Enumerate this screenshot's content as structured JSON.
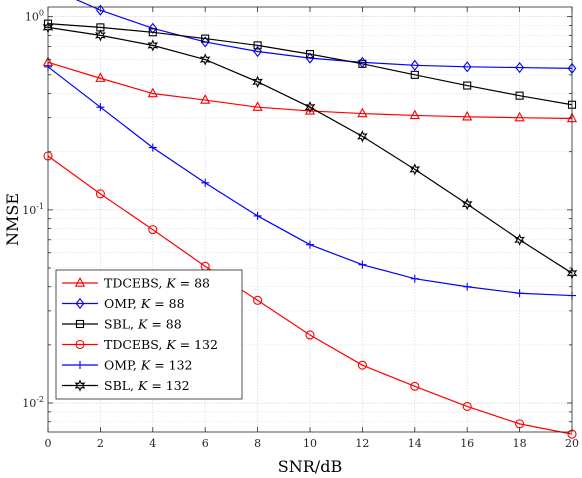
{
  "chart_data": {
    "type": "line",
    "xlabel": "SNR/dB",
    "ylabel": "NMSE",
    "xlim": [
      0,
      20
    ],
    "ylim_exp": [
      -2.15,
      0.05
    ],
    "yscale": "log",
    "grid": true,
    "legend_position": "bottom-left",
    "x": [
      0,
      2,
      4,
      6,
      8,
      10,
      12,
      14,
      16,
      18,
      20
    ],
    "x_ticks": [
      "0",
      "2",
      "4",
      "6",
      "8",
      "10",
      "12",
      "14",
      "16",
      "18",
      "20"
    ],
    "y_ticks": [
      {
        "value": 0.01,
        "base": "10",
        "exp": "-2"
      },
      {
        "value": 0.1,
        "base": "10",
        "exp": "-1"
      },
      {
        "value": 1,
        "base": "10",
        "exp": "0"
      }
    ],
    "series": [
      {
        "name": "TDCEBS, ",
        "k": "K",
        "kval": " = 88",
        "color": "#ff0000",
        "marker": "triangle",
        "values": [
          0.58,
          0.48,
          0.4,
          0.37,
          0.34,
          0.325,
          0.315,
          0.308,
          0.303,
          0.3,
          0.297
        ]
      },
      {
        "name": "OMP, ",
        "k": "K",
        "kval": " = 88",
        "color": "#0000ff",
        "marker": "diamond",
        "values": [
          1.42,
          1.08,
          0.87,
          0.74,
          0.66,
          0.61,
          0.58,
          0.56,
          0.55,
          0.545,
          0.54
        ]
      },
      {
        "name": "SBL, ",
        "k": "K",
        "kval": " = 88",
        "color": "#000000",
        "marker": "square",
        "values": [
          0.92,
          0.88,
          0.83,
          0.77,
          0.71,
          0.64,
          0.57,
          0.5,
          0.44,
          0.39,
          0.35
        ]
      },
      {
        "name": "TDCEBS, ",
        "k": "K",
        "kval": " = 132",
        "color": "#ff0000",
        "marker": "circle",
        "values": [
          0.19,
          0.121,
          0.079,
          0.051,
          0.034,
          0.0225,
          0.0157,
          0.0122,
          0.0096,
          0.0078,
          0.0069
        ]
      },
      {
        "name": "OMP, ",
        "k": "K",
        "kval": " = 132",
        "color": "#0000ff",
        "marker": "plus",
        "values": [
          0.55,
          0.34,
          0.21,
          0.138,
          0.093,
          0.066,
          0.052,
          0.044,
          0.04,
          0.037,
          0.036
        ]
      },
      {
        "name": "SBL, ",
        "k": "K",
        "kval": " = 132",
        "color": "#000000",
        "marker": "hexagram",
        "values": [
          0.88,
          0.8,
          0.71,
          0.6,
          0.46,
          0.34,
          0.24,
          0.162,
          0.107,
          0.07,
          0.047
        ]
      }
    ]
  }
}
